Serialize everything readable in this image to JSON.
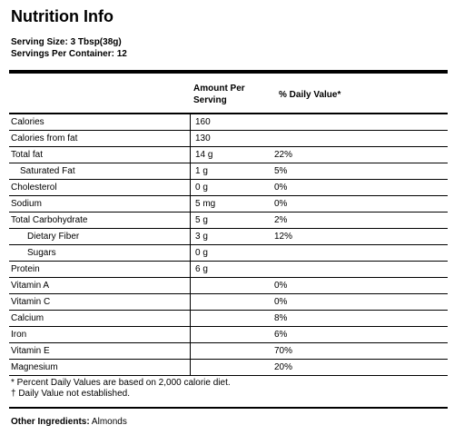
{
  "title": "Nutrition Info",
  "serving_size": "Serving Size: 3 Tbsp(38g)",
  "servings_per_container": "Servings Per Container: 12",
  "headers": {
    "amount": "Amount Per Serving",
    "daily_value": "% Daily Value*"
  },
  "rows": [
    {
      "name": "Calories",
      "amount": "160",
      "dv": ""
    },
    {
      "name": "Calories from fat",
      "amount": "130",
      "dv": ""
    },
    {
      "name": "Total fat",
      "amount": "14 g",
      "dv": "22%"
    },
    {
      "name": "Saturated Fat",
      "amount": "1 g",
      "dv": "5%"
    },
    {
      "name": "Cholesterol",
      "amount": "0 g",
      "dv": "0%"
    },
    {
      "name": "Sodium",
      "amount": "5 mg",
      "dv": "0%"
    },
    {
      "name": "Total Carbohydrate",
      "amount": "5 g",
      "dv": "2%"
    },
    {
      "name": "Dietary Fiber",
      "amount": "3 g",
      "dv": "12%"
    },
    {
      "name": "Sugars",
      "amount": "0 g",
      "dv": ""
    },
    {
      "name": "Protein",
      "amount": "6 g",
      "dv": ""
    },
    {
      "name": "Vitamin A",
      "amount": "",
      "dv": "0%"
    },
    {
      "name": "Vitamin C",
      "amount": "",
      "dv": "0%"
    },
    {
      "name": "Calcium",
      "amount": "",
      "dv": "8%"
    },
    {
      "name": "Iron",
      "amount": "",
      "dv": "6%"
    },
    {
      "name": "Vitamin E",
      "amount": "",
      "dv": "70%"
    },
    {
      "name": "Magnesium",
      "amount": "",
      "dv": "20%"
    }
  ],
  "footnotes": {
    "percent_note": "* Percent Daily Values are based on 2,000 calorie diet.",
    "dagger_note": "† Daily Value not established."
  },
  "other_ingredients": {
    "label": "Other Ingredients:",
    "value": "Almonds"
  }
}
